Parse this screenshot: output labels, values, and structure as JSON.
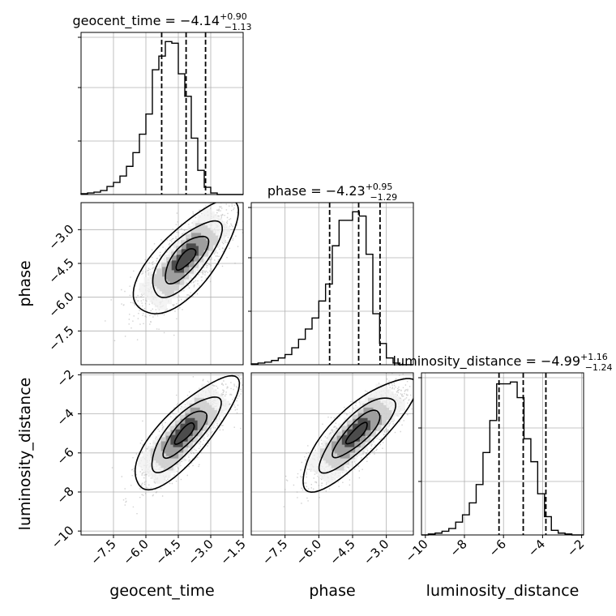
{
  "chart_data": {
    "type": "corner",
    "parameters": [
      "geocent_time",
      "phase",
      "luminosity_distance"
    ],
    "grid": true,
    "diagonal": [
      {
        "name": "geocent_time",
        "title_prefix": "geocent_time = ",
        "median": "−4.14",
        "upper": "+0.90",
        "lower": "−1.13",
        "quantiles": [
          -5.27,
          -4.14,
          -3.24
        ],
        "xlim": [
          -9.0,
          -1.5
        ],
        "xticks": [
          -7.5,
          -6.0,
          -4.5,
          -3.0,
          -1.5
        ],
        "xtick_labels": [
          "−7.5",
          "−6.0",
          "−4.5",
          "−3.0",
          "−1.5"
        ],
        "bin_edges_start": -9.0,
        "bin_width": 0.3,
        "counts": [
          1,
          2,
          3,
          5,
          10,
          15,
          23,
          35,
          52,
          75,
          100,
          155,
          172,
          190,
          188,
          150,
          122,
          70,
          30,
          9,
          2,
          0,
          0,
          0,
          0
        ]
      },
      {
        "name": "phase",
        "title_prefix": "phase = ",
        "median": "−4.23",
        "upper": "+0.95",
        "lower": "−1.29",
        "quantiles": [
          -5.52,
          -4.23,
          -3.28
        ],
        "xlim": [
          -9.0,
          -1.8
        ],
        "xticks": [
          -7.5,
          -6.0,
          -4.5,
          -3.0
        ],
        "xtick_labels": [
          "−7.5",
          "−6.0",
          "−4.5",
          "−3.0"
        ],
        "bin_edges_start": -9.0,
        "bin_width": 0.3,
        "counts": [
          1,
          2,
          3,
          5,
          8,
          12,
          20,
          30,
          42,
          55,
          75,
          95,
          140,
          170,
          170,
          180,
          175,
          130,
          60,
          25,
          8,
          2,
          0,
          0
        ]
      },
      {
        "name": "luminosity_distance",
        "title_prefix": "luminosity_distance = ",
        "median": "−4.99",
        "upper": "+1.16",
        "lower": "−1.24",
        "quantiles": [
          -6.23,
          -4.99,
          -3.83
        ],
        "xlim": [
          -10.2,
          -1.9
        ],
        "xticks": [
          -10,
          -8,
          -6,
          -4,
          -2
        ],
        "xtick_labels": [
          "−10",
          "−8",
          "−6",
          "−4",
          "−2"
        ],
        "bin_edges_start": -10.2,
        "bin_width": 0.35,
        "counts": [
          0,
          1,
          2,
          4,
          7,
          14,
          22,
          35,
          55,
          90,
          125,
          165,
          165,
          167,
          150,
          105,
          80,
          45,
          20,
          5,
          2,
          1,
          0,
          0
        ]
      }
    ],
    "axis_labels": [
      "geocent_time",
      "phase",
      "luminosity_distance"
    ],
    "ylim": {
      "phase": [
        -9.0,
        -1.8
      ],
      "luminosity_distance": [
        -10.2,
        -1.9
      ]
    },
    "yticks": {
      "phase": [
        -7.5,
        -6.0,
        -4.5,
        -3.0
      ],
      "luminosity_distance": [
        -10,
        -8,
        -6,
        -4,
        -2
      ]
    },
    "ytick_labels": {
      "phase": [
        "−7.5",
        "−6.0",
        "−4.5",
        "−3.0"
      ],
      "luminosity_distance": [
        "−10",
        "−8",
        "−6",
        "−4",
        "−2"
      ]
    },
    "joint": [
      {
        "x": "geocent_time",
        "y": "phase",
        "mean": [
          -4.15,
          -4.3
        ],
        "sd": [
          1.0,
          1.05
        ],
        "corr": 0.72
      },
      {
        "x": "geocent_time",
        "y": "luminosity_distance",
        "mean": [
          -4.2,
          -5.0
        ],
        "sd": [
          1.0,
          1.2
        ],
        "corr": 0.8
      },
      {
        "x": "phase",
        "y": "luminosity_distance",
        "mean": [
          -4.3,
          -5.0
        ],
        "sd": [
          1.05,
          1.2
        ],
        "corr": 0.82
      }
    ],
    "colors": {
      "line": "#000000",
      "grid": "#b0b0b0",
      "scatter": "#9a9a9a"
    }
  }
}
